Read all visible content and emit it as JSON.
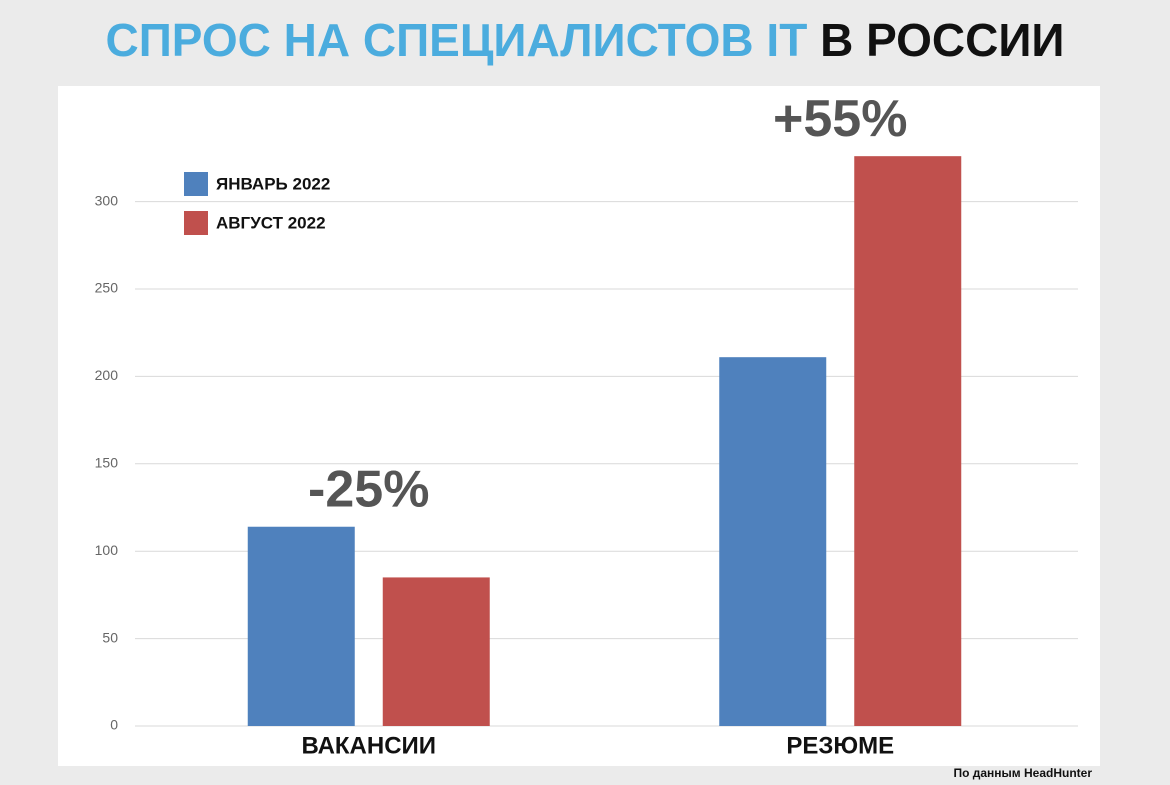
{
  "chart_data": {
    "type": "bar",
    "title_parts": [
      {
        "text": "СПРОС НА СПЕЦИАЛИСТОВ IT",
        "color": "#4bacde"
      },
      {
        "text": "В РОССИИ",
        "color": "#111111"
      }
    ],
    "categories": [
      "ВАКАНСИИ",
      "РЕЗЮМЕ"
    ],
    "series": [
      {
        "name": "ЯНВАРЬ 2022",
        "color": "#4f81bd",
        "values": [
          114,
          211
        ]
      },
      {
        "name": "АВГУСТ 2022",
        "color": "#c0504d",
        "values": [
          85,
          326
        ]
      }
    ],
    "annotations": [
      "-25%",
      "+55%"
    ],
    "ylim": [
      0,
      365
    ],
    "yticks": [
      0,
      50,
      100,
      150,
      200,
      250,
      300
    ],
    "grid": true,
    "legend": "top-left",
    "source": "По данным HeadHunter"
  }
}
